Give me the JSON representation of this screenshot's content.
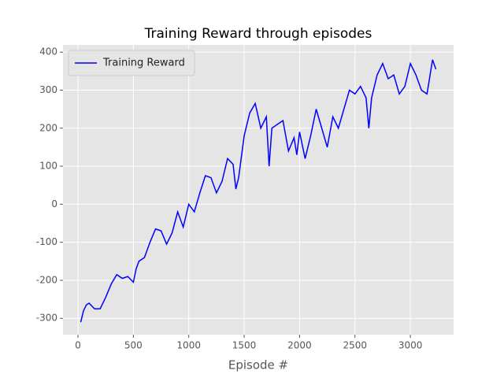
{
  "chart_data": {
    "type": "line",
    "title": "Training Reward through episodes",
    "xlabel": "Episode #",
    "x": [
      25,
      50,
      75,
      100,
      150,
      200,
      225,
      250,
      300,
      350,
      400,
      450,
      500,
      525,
      550,
      600,
      650,
      700,
      750,
      800,
      850,
      900,
      950,
      1000,
      1050,
      1100,
      1150,
      1200,
      1250,
      1300,
      1350,
      1400,
      1425,
      1450,
      1500,
      1550,
      1600,
      1650,
      1700,
      1725,
      1750,
      1800,
      1850,
      1900,
      1950,
      1975,
      2000,
      2050,
      2100,
      2150,
      2200,
      2250,
      2300,
      2350,
      2400,
      2450,
      2500,
      2550,
      2600,
      2625,
      2650,
      2700,
      2750,
      2800,
      2850,
      2900,
      2950,
      3000,
      3050,
      3100,
      3150,
      3200,
      3230
    ],
    "series": [
      {
        "name": "Training Reward",
        "color": "#0000ff",
        "values": [
          -310,
          -280,
          -265,
          -260,
          -275,
          -275,
          -260,
          -245,
          -210,
          -185,
          -195,
          -190,
          -205,
          -170,
          -150,
          -140,
          -100,
          -65,
          -70,
          -105,
          -75,
          -20,
          -60,
          0,
          -20,
          30,
          75,
          70,
          30,
          60,
          120,
          105,
          40,
          70,
          180,
          240,
          265,
          200,
          230,
          100,
          200,
          210,
          220,
          140,
          175,
          130,
          190,
          120,
          180,
          250,
          200,
          150,
          230,
          200,
          250,
          300,
          290,
          310,
          280,
          200,
          280,
          340,
          370,
          330,
          340,
          290,
          310,
          370,
          340,
          300,
          290,
          380,
          355
        ]
      }
    ],
    "xlim": [
      -135,
      3390
    ],
    "ylim": [
      -343,
      419
    ],
    "xticks": [
      0,
      500,
      1000,
      1500,
      2000,
      2500,
      3000
    ],
    "yticks": [
      -300,
      -200,
      -100,
      0,
      100,
      200,
      300,
      400
    ],
    "grid": true,
    "legend": "upper left"
  }
}
